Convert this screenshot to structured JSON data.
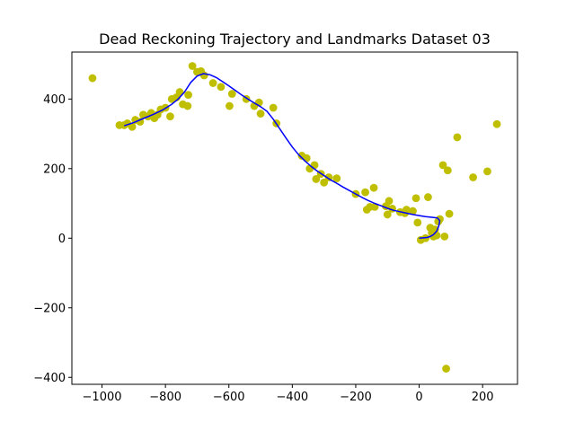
{
  "chart_data": {
    "type": "scatter",
    "title": "Dead Reckoning Trajectory and Landmarks Dataset 03",
    "xlabel": "",
    "ylabel": "",
    "xlim": [
      -1095,
      310
    ],
    "ylim": [
      -420,
      535
    ],
    "xticks": [
      -1000,
      -800,
      -600,
      -400,
      -200,
      0,
      200
    ],
    "yticks": [
      -400,
      -200,
      0,
      200,
      400
    ],
    "xtick_labels": [
      "−1000",
      "−800",
      "−600",
      "−400",
      "−200",
      "0",
      "200"
    ],
    "ytick_labels": [
      "−400",
      "−200",
      "0",
      "200",
      "400"
    ],
    "grid": false,
    "series": [
      {
        "kind": "scatter",
        "color": "#bfbf00",
        "points": [
          [
            -1030,
            460
          ],
          [
            -945,
            325
          ],
          [
            -930,
            325
          ],
          [
            -920,
            330
          ],
          [
            -905,
            320
          ],
          [
            -895,
            340
          ],
          [
            -880,
            335
          ],
          [
            -870,
            355
          ],
          [
            -855,
            350
          ],
          [
            -845,
            360
          ],
          [
            -835,
            345
          ],
          [
            -825,
            355
          ],
          [
            -815,
            370
          ],
          [
            -800,
            375
          ],
          [
            -785,
            350
          ],
          [
            -780,
            400
          ],
          [
            -765,
            405
          ],
          [
            -755,
            420
          ],
          [
            -745,
            385
          ],
          [
            -730,
            380
          ],
          [
            -728,
            412
          ],
          [
            -715,
            495
          ],
          [
            -700,
            478
          ],
          [
            -688,
            480
          ],
          [
            -678,
            468
          ],
          [
            -650,
            446
          ],
          [
            -625,
            435
          ],
          [
            -598,
            380
          ],
          [
            -590,
            415
          ],
          [
            -545,
            400
          ],
          [
            -520,
            380
          ],
          [
            -505,
            390
          ],
          [
            -500,
            358
          ],
          [
            -460,
            375
          ],
          [
            -450,
            330
          ],
          [
            -370,
            237
          ],
          [
            -355,
            230
          ],
          [
            -345,
            200
          ],
          [
            -330,
            210
          ],
          [
            -325,
            170
          ],
          [
            -310,
            185
          ],
          [
            -300,
            160
          ],
          [
            -285,
            175
          ],
          [
            -260,
            172
          ],
          [
            -200,
            127
          ],
          [
            -170,
            132
          ],
          [
            -165,
            82
          ],
          [
            -155,
            90
          ],
          [
            -143,
            145
          ],
          [
            -140,
            90
          ],
          [
            -105,
            92
          ],
          [
            -100,
            68
          ],
          [
            -95,
            107
          ],
          [
            -85,
            85
          ],
          [
            -60,
            75
          ],
          [
            -45,
            72
          ],
          [
            -40,
            82
          ],
          [
            -20,
            78
          ],
          [
            -10,
            115
          ],
          [
            -5,
            45
          ],
          [
            5,
            -5
          ],
          [
            20,
            0
          ],
          [
            28,
            118
          ],
          [
            35,
            30
          ],
          [
            40,
            15
          ],
          [
            45,
            5
          ],
          [
            50,
            25
          ],
          [
            55,
            8
          ],
          [
            60,
            48
          ],
          [
            65,
            55
          ],
          [
            75,
            210
          ],
          [
            80,
            5
          ],
          [
            85,
            -375
          ],
          [
            90,
            195
          ],
          [
            95,
            70
          ],
          [
            120,
            290
          ],
          [
            170,
            175
          ],
          [
            215,
            192
          ],
          [
            245,
            328
          ]
        ]
      },
      {
        "kind": "line",
        "color": "#0000ff",
        "points": [
          [
            -930,
            323
          ],
          [
            -900,
            332
          ],
          [
            -870,
            344
          ],
          [
            -840,
            355
          ],
          [
            -810,
            368
          ],
          [
            -780,
            385
          ],
          [
            -760,
            400
          ],
          [
            -740,
            420
          ],
          [
            -720,
            448
          ],
          [
            -700,
            466
          ],
          [
            -680,
            473
          ],
          [
            -660,
            470
          ],
          [
            -640,
            462
          ],
          [
            -620,
            450
          ],
          [
            -600,
            438
          ],
          [
            -580,
            425
          ],
          [
            -560,
            412
          ],
          [
            -540,
            400
          ],
          [
            -520,
            389
          ],
          [
            -500,
            378
          ],
          [
            -480,
            365
          ],
          [
            -460,
            342
          ],
          [
            -440,
            315
          ],
          [
            -420,
            288
          ],
          [
            -400,
            262
          ],
          [
            -380,
            240
          ],
          [
            -360,
            222
          ],
          [
            -340,
            206
          ],
          [
            -320,
            192
          ],
          [
            -300,
            180
          ],
          [
            -280,
            168
          ],
          [
            -260,
            158
          ],
          [
            -240,
            147
          ],
          [
            -220,
            137
          ],
          [
            -200,
            127
          ],
          [
            -180,
            117
          ],
          [
            -160,
            108
          ],
          [
            -140,
            100
          ],
          [
            -120,
            93
          ],
          [
            -100,
            86
          ],
          [
            -80,
            80
          ],
          [
            -60,
            76
          ],
          [
            -40,
            72
          ],
          [
            -20,
            68
          ],
          [
            0,
            65
          ],
          [
            20,
            62
          ],
          [
            40,
            60
          ],
          [
            58,
            58
          ],
          [
            65,
            50
          ],
          [
            62,
            35
          ],
          [
            55,
            20
          ],
          [
            45,
            10
          ],
          [
            35,
            5
          ],
          [
            25,
            2
          ],
          [
            0,
            0
          ]
        ]
      }
    ]
  }
}
